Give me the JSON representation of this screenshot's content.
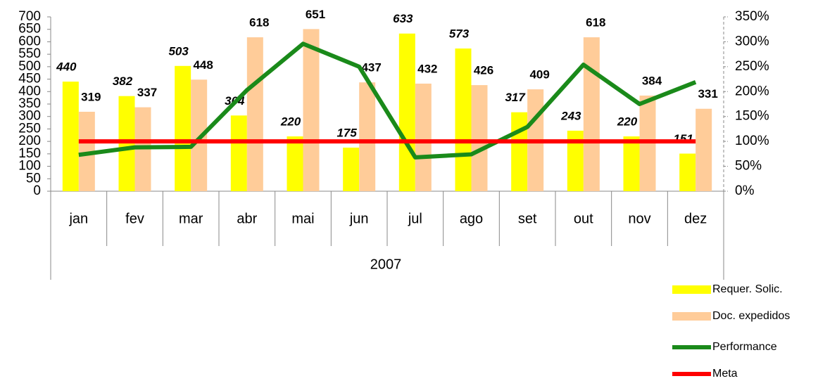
{
  "chart_data": {
    "type": "bar",
    "categories": [
      "jan",
      "fev",
      "mar",
      "abr",
      "mai",
      "jun",
      "jul",
      "ago",
      "set",
      "out",
      "nov",
      "dez"
    ],
    "group_label": "2007",
    "series": [
      {
        "name": "Requer. Solic.",
        "type": "bar",
        "color": "#ffff00",
        "values": [
          440,
          382,
          503,
          304,
          220,
          175,
          633,
          573,
          317,
          243,
          220,
          151
        ]
      },
      {
        "name": "Doc. expedidos",
        "type": "bar",
        "color": "#ffcc99",
        "values": [
          319,
          337,
          448,
          618,
          651,
          437,
          432,
          426,
          409,
          618,
          384,
          331
        ]
      },
      {
        "name": "Performance",
        "type": "line",
        "axis": "y2",
        "color": "#1a8a1a",
        "values": [
          73,
          88,
          89,
          203,
          296,
          250,
          68,
          74,
          129,
          254,
          175,
          219
        ]
      },
      {
        "name": "Meta",
        "type": "line",
        "axis": "y2",
        "color": "#ff0000",
        "values": [
          100,
          100,
          100,
          100,
          100,
          100,
          100,
          100,
          100,
          100,
          100,
          100
        ]
      }
    ],
    "ylim": [
      0,
      700
    ],
    "yticks": [
      0,
      50,
      100,
      150,
      200,
      250,
      300,
      350,
      400,
      450,
      500,
      550,
      600,
      650,
      700
    ],
    "y2lim": [
      0,
      350
    ],
    "y2ticks": [
      {
        "value": 0,
        "label": "0%"
      },
      {
        "value": 50,
        "label": "50%"
      },
      {
        "value": 100,
        "label": "100%"
      },
      {
        "value": 150,
        "label": "150%"
      },
      {
        "value": 200,
        "label": "200%"
      },
      {
        "value": 250,
        "label": "250%"
      },
      {
        "value": 300,
        "label": "300%"
      },
      {
        "value": 350,
        "label": "350%"
      }
    ],
    "grid": false,
    "legend": "bottom-right"
  }
}
